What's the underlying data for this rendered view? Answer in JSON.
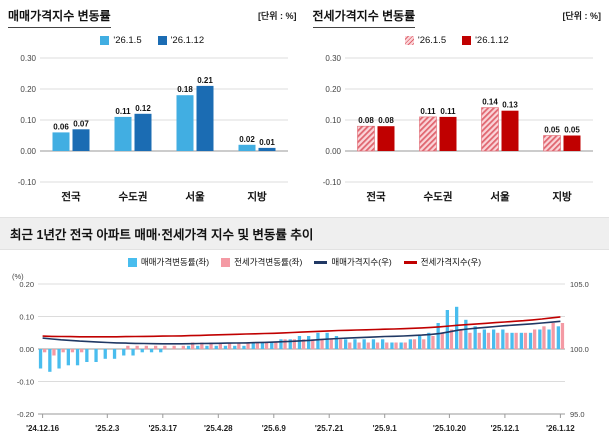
{
  "sale_panel": {
    "title": "매매가격지수 변동률",
    "unit": "[단위 : %]",
    "legend": [
      "'26.1.5",
      "'26.1.12"
    ]
  },
  "jeonse_panel": {
    "title": "전세가격지수 변동률",
    "unit": "[단위 : %]",
    "legend": [
      "'26.1.5",
      "'26.1.12"
    ]
  },
  "trend_panel": {
    "title": "최근 1년간 전국 아파트 매매·전세가격 지수 및 변동률 추이",
    "legend": [
      "매매가격변동률(좌)",
      "전세가격변동률(좌)",
      "매매가격지수(우)",
      "전세가격지수(우)"
    ],
    "left_axis_label": "(%)"
  },
  "colors": {
    "sale_week1": "#41aee2",
    "sale_week2": "#1b6cb3",
    "jeonse_week1": "#fad4d8",
    "jeonse_week1_stripe": "#e06670",
    "jeonse_week2": "#c00000",
    "trend_sale_bar": "#49bdee",
    "trend_jeonse_bar": "#f49aa4",
    "trend_sale_line": "#203864",
    "trend_jeonse_line": "#c00000",
    "grid": "#dcdcdc",
    "axis": "#9a9a9a"
  },
  "chart_data": [
    {
      "type": "bar",
      "title": "매매가격지수 변동률",
      "unit": "%",
      "categories": [
        "전국",
        "수도권",
        "서울",
        "지방"
      ],
      "series": [
        {
          "name": "'26.1.5",
          "values": [
            0.06,
            0.11,
            0.18,
            0.02
          ]
        },
        {
          "name": "'26.1.12",
          "values": [
            0.07,
            0.12,
            0.21,
            0.01
          ]
        }
      ],
      "ylim": [
        -0.1,
        0.3
      ],
      "yticks": [
        0.3,
        0.2,
        0.1,
        0.0,
        -0.1
      ],
      "grid": true,
      "legend_position": "top"
    },
    {
      "type": "bar",
      "title": "전세가격지수 변동률",
      "unit": "%",
      "categories": [
        "전국",
        "수도권",
        "서울",
        "지방"
      ],
      "series": [
        {
          "name": "'26.1.5",
          "values": [
            0.08,
            0.11,
            0.14,
            0.05
          ]
        },
        {
          "name": "'26.1.12",
          "values": [
            0.08,
            0.11,
            0.13,
            0.05
          ]
        }
      ],
      "ylim": [
        -0.1,
        0.3
      ],
      "yticks": [
        0.3,
        0.2,
        0.1,
        0.0,
        -0.1
      ],
      "grid": true,
      "legend_position": "top"
    },
    {
      "type": "combo",
      "title": "최근 1년간 전국 아파트 매매·전세가격 지수 및 변동률 추이",
      "left_axis_label": "(%)",
      "left_ylim": [
        -0.2,
        0.2
      ],
      "left_yticks": [
        0.2,
        0.1,
        0.0,
        -0.1,
        -0.2
      ],
      "right_ylim": [
        95.0,
        105.0
      ],
      "right_yticks": [
        105.0,
        100.0,
        95.0
      ],
      "x_labels": [
        "'24.12.16",
        "'25.2.3",
        "'25.3.17",
        "'25.4.28",
        "'25.6.9",
        "'25.7.21",
        "'25.9.1",
        "'25.10.20",
        "'25.12.1",
        "'26.1.12"
      ],
      "x_label_positions": [
        0,
        7,
        13,
        19,
        25,
        31,
        37,
        44,
        50,
        56
      ],
      "bar_series": [
        {
          "name": "매매가격변동률(좌)",
          "axis": "left",
          "values": [
            -0.06,
            -0.07,
            -0.06,
            -0.05,
            -0.05,
            -0.04,
            -0.04,
            -0.03,
            -0.03,
            -0.02,
            -0.02,
            -0.01,
            -0.01,
            -0.01,
            0.0,
            0.0,
            0.01,
            0.01,
            0.01,
            0.01,
            0.01,
            0.01,
            0.01,
            0.02,
            0.02,
            0.02,
            0.03,
            0.03,
            0.04,
            0.04,
            0.05,
            0.05,
            0.04,
            0.03,
            0.03,
            0.03,
            0.03,
            0.03,
            0.02,
            0.02,
            0.03,
            0.04,
            0.05,
            0.08,
            0.12,
            0.13,
            0.09,
            0.07,
            0.06,
            0.06,
            0.06,
            0.05,
            0.05,
            0.05,
            0.06,
            0.06,
            0.07
          ]
        },
        {
          "name": "전세가격변동률(좌)",
          "axis": "left",
          "values": [
            -0.01,
            -0.02,
            -0.01,
            -0.01,
            -0.01,
            0.0,
            0.0,
            0.0,
            0.0,
            0.01,
            0.01,
            0.01,
            0.01,
            0.01,
            0.01,
            0.01,
            0.02,
            0.02,
            0.02,
            0.02,
            0.02,
            0.02,
            0.02,
            0.02,
            0.02,
            0.02,
            0.03,
            0.03,
            0.03,
            0.03,
            0.03,
            0.03,
            0.03,
            0.02,
            0.02,
            0.02,
            0.02,
            0.02,
            0.02,
            0.02,
            0.03,
            0.03,
            0.04,
            0.05,
            0.06,
            0.06,
            0.05,
            0.05,
            0.05,
            0.05,
            0.05,
            0.05,
            0.05,
            0.06,
            0.07,
            0.08,
            0.08
          ]
        }
      ],
      "line_series": [
        {
          "name": "매매가격지수(우)",
          "axis": "right",
          "values": [
            100.84,
            100.77,
            100.71,
            100.66,
            100.61,
            100.57,
            100.53,
            100.5,
            100.47,
            100.45,
            100.43,
            100.42,
            100.41,
            100.4,
            100.4,
            100.4,
            100.41,
            100.42,
            100.43,
            100.44,
            100.45,
            100.46,
            100.47,
            100.49,
            100.51,
            100.53,
            100.56,
            100.59,
            100.63,
            100.67,
            100.72,
            100.77,
            100.81,
            100.84,
            100.87,
            100.9,
            100.93,
            100.96,
            100.98,
            101.0,
            101.03,
            101.07,
            101.12,
            101.2,
            101.32,
            101.45,
            101.54,
            101.61,
            101.67,
            101.73,
            101.79,
            101.84,
            101.89,
            101.94,
            102.0,
            102.06,
            102.13
          ]
        },
        {
          "name": "전세가격지수(우)",
          "axis": "right",
          "values": [
            100.99,
            100.97,
            100.96,
            100.95,
            100.94,
            100.94,
            100.94,
            100.94,
            100.94,
            100.95,
            100.96,
            100.97,
            100.98,
            100.99,
            101.0,
            101.01,
            101.03,
            101.05,
            101.07,
            101.09,
            101.11,
            101.13,
            101.15,
            101.17,
            101.19,
            101.21,
            101.24,
            101.27,
            101.3,
            101.33,
            101.36,
            101.39,
            101.42,
            101.44,
            101.46,
            101.48,
            101.5,
            101.52,
            101.54,
            101.56,
            101.59,
            101.62,
            101.66,
            101.71,
            101.77,
            101.83,
            101.88,
            101.93,
            101.98,
            102.03,
            102.08,
            102.13,
            102.18,
            102.24,
            102.31,
            102.39,
            102.47
          ]
        }
      ]
    }
  ]
}
